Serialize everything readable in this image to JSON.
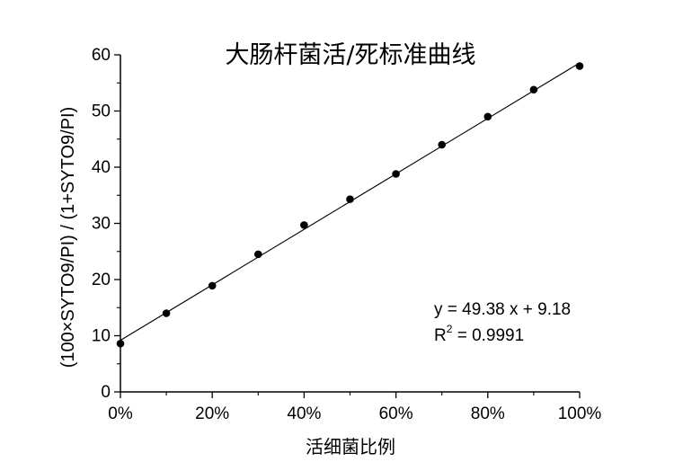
{
  "chart_data": {
    "type": "scatter",
    "title": "大肠杆菌活/死标准曲线",
    "xlabel": "活细菌比例",
    "ylabel": "(100×SYTO9/PI) / (1+SYTO9/PI)",
    "xlim": [
      0,
      1
    ],
    "ylim": [
      0,
      60
    ],
    "x_tick_labels": [
      "0%",
      "20%",
      "40%",
      "60%",
      "80%",
      "100%"
    ],
    "y_tick_labels": [
      "0",
      "10",
      "20",
      "30",
      "40",
      "50",
      "60"
    ],
    "x_ticks": [
      0,
      0.2,
      0.4,
      0.6,
      0.8,
      1.0
    ],
    "y_ticks": [
      0,
      10,
      20,
      30,
      40,
      50,
      60
    ],
    "grid": false,
    "series": [
      {
        "x": [
          0,
          0.1,
          0.2,
          0.3,
          0.4,
          0.5,
          0.6,
          0.7,
          0.8,
          0.9,
          1.0
        ],
        "y": [
          8.6,
          14.0,
          18.9,
          24.5,
          29.7,
          34.3,
          38.8,
          44.0,
          49.0,
          53.8,
          58.0
        ]
      }
    ],
    "fit": {
      "slope": 49.38,
      "intercept": 9.18
    },
    "equation": "y = 49.38 x + 9.18",
    "r2_label": "R",
    "r2_sup": "2",
    "r2_value": " = 0.9991"
  }
}
